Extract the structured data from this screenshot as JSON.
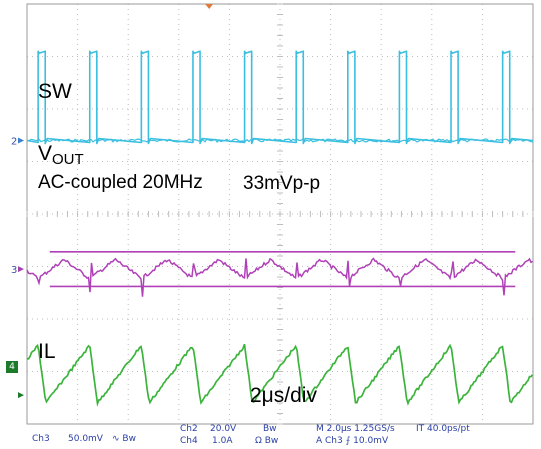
{
  "chart_data": {
    "type": "line",
    "instrument": "oscilloscope",
    "timebase": "2μs/div",
    "annotations": {
      "sw": "SW",
      "vout_main": "V",
      "vout_sub": "OUT",
      "vout_note": "AC-coupled 20MHz",
      "ripple": "33mVp-p",
      "il": "IL",
      "timebase": "2μs/div"
    },
    "series": [
      {
        "name": "SW",
        "channel": "2",
        "color": "#3bbfe0",
        "scale": "20.0V/div",
        "waveform": "pulse",
        "pulse_starts_div": [
          0.22,
          1.24,
          2.26,
          3.28,
          4.3,
          5.32,
          6.34,
          7.36,
          8.38,
          9.4
        ],
        "pulse_width_div": 0.14,
        "amplitude_div": 1.7
      },
      {
        "name": "VOUT",
        "channel": "3",
        "color": "#b040b8",
        "scale": "50.0mV/div",
        "waveform": "ripple",
        "period_div": 1.02,
        "peak_to_peak_mV": 33,
        "amplitude_div": 0.66
      },
      {
        "name": "IL",
        "channel": "4",
        "color": "#3cb43c",
        "scale": "1.0A/div",
        "waveform": "triangle",
        "period_div": 1.02,
        "amplitude_div": 1.1
      }
    ],
    "x_divisions": 10,
    "y_divisions": 8,
    "grid": true
  },
  "markers": {
    "ch2": "2",
    "ch3": "3",
    "ch4": "4"
  },
  "status": {
    "ch3": "Ch3",
    "ch3_scale": "50.0mV",
    "ch3_sym": "∿ Bw",
    "ch2": "Ch2",
    "ch2_scale": "20.0V",
    "ch2_bw": "Bw",
    "ch4": "Ch4",
    "ch4_scale": "1.0A",
    "ch4_sym": "Ω Bw",
    "timebase": "M 2.0μs 1.25GS/s",
    "interp": "IT 40.0ps/pt",
    "trigger": "A Ch3 ⨍ 10.0mV"
  }
}
